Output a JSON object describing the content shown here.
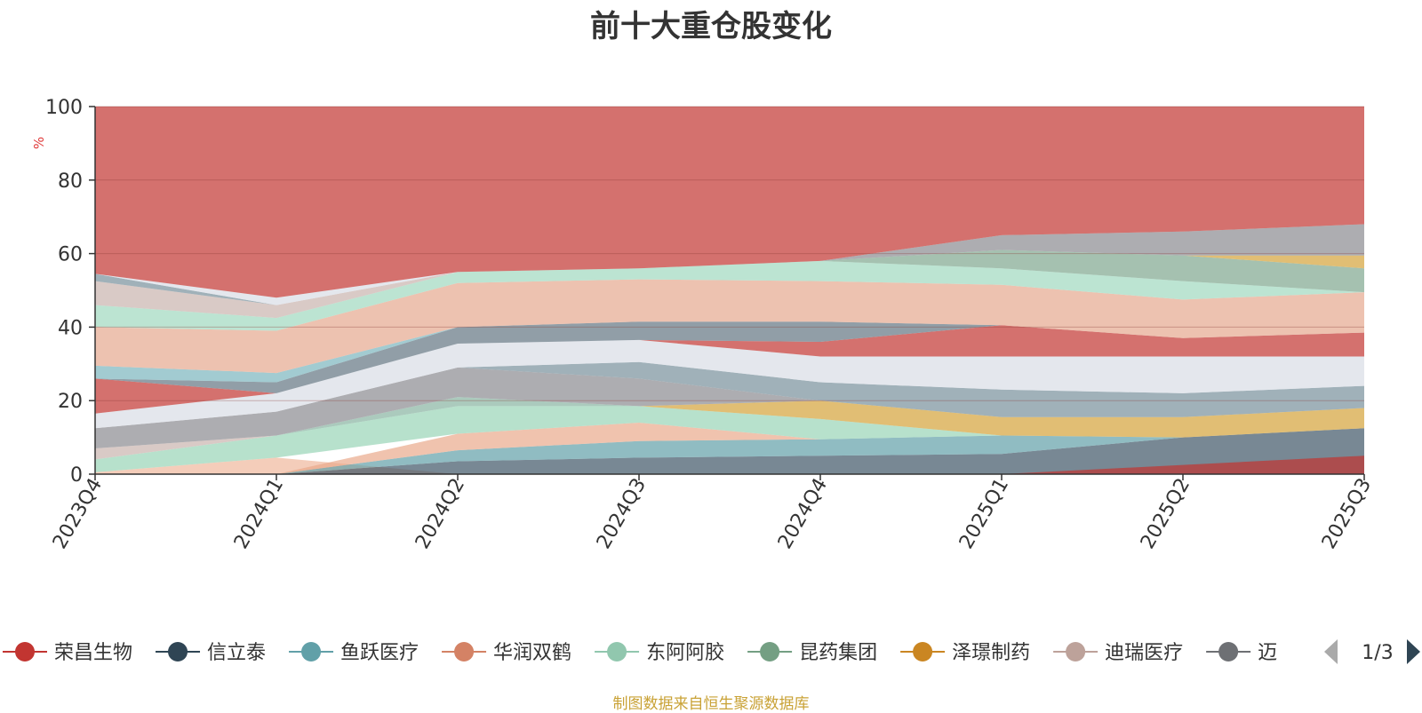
{
  "title": "前十大重仓股变化",
  "source": "制图数据来自恒生聚源数据库",
  "legend_page": "1/3",
  "chart_data": {
    "type": "area",
    "stacked": true,
    "x": [
      "2023Q4",
      "2024Q1",
      "2024Q2",
      "2024Q3",
      "2024Q4",
      "2025Q1",
      "2025Q2",
      "2025Q3"
    ],
    "ylabel": "%",
    "ylim": [
      0,
      100
    ],
    "yticks": [
      0,
      20,
      40,
      60,
      80,
      100
    ],
    "grid": true,
    "legend_position": "bottom",
    "bands": [
      {
        "color": "#f0b89c",
        "lower": [
          0,
          0,
          0,
          0,
          0,
          0,
          0,
          0
        ],
        "upper": [
          0.5,
          4.5,
          0,
          0,
          0,
          0,
          0,
          0
        ]
      },
      {
        "color": "#3f5566",
        "lower": [
          0,
          0,
          0,
          0,
          0,
          0,
          0,
          0
        ],
        "upper": [
          0,
          0,
          3.5,
          4.5,
          5,
          5.5,
          10,
          12.5
        ]
      },
      {
        "color": "#c23531",
        "lower": [
          0,
          0,
          0,
          0,
          0,
          0,
          0,
          0
        ],
        "upper": [
          0,
          0,
          0,
          0,
          0,
          0,
          2.5,
          5
        ]
      },
      {
        "color": "#61a0a8",
        "lower": [
          0,
          0,
          3.5,
          4.5,
          5,
          5.5,
          10,
          12.5
        ],
        "upper": [
          0,
          0,
          6.5,
          9,
          9.5,
          10.5,
          10,
          12.5
        ]
      },
      {
        "color": "#e9a98b",
        "lower": [
          0,
          0,
          6.5,
          9,
          9.5,
          10.5,
          10,
          12.5
        ],
        "upper": [
          0,
          0,
          11,
          14,
          9.5,
          10.5,
          10,
          12.5
        ]
      },
      {
        "color": "#98d4b6",
        "lower": [
          0.5,
          4.5,
          11,
          14,
          9.5,
          10.5,
          10,
          12.5
        ],
        "upper": [
          4,
          10.5,
          18.5,
          18.5,
          15,
          10.5,
          10,
          12.5
        ]
      },
      {
        "color": "#d4a339",
        "lower": [
          0,
          0,
          0,
          18.5,
          15,
          10.5,
          10,
          12.5
        ],
        "upper": [
          0,
          0,
          0,
          18.5,
          20,
          15.5,
          15.5,
          18
        ]
      },
      {
        "color": "#88b3a1",
        "lower": [
          4,
          10.5,
          18.5,
          18.5,
          20,
          15.5,
          15.5,
          18
        ],
        "upper": [
          4,
          10.5,
          21,
          18.5,
          20,
          15.5,
          15.5,
          18
        ]
      },
      {
        "color": "#c9b3ae",
        "lower": [
          4,
          10.5,
          21,
          18.5,
          20,
          15.5,
          15.5,
          18
        ],
        "upper": [
          7,
          10.5,
          21,
          18.5,
          20,
          15.5,
          15.5,
          18
        ]
      },
      {
        "color": "#8a8a90",
        "lower": [
          7,
          10.5,
          21,
          18.5,
          20,
          15.5,
          15.5,
          18
        ],
        "upper": [
          12.5,
          17,
          29,
          26,
          20,
          15.5,
          15.5,
          18
        ]
      },
      {
        "color": "#77909b",
        "lower": [
          12.5,
          17,
          29,
          26,
          20,
          15.5,
          15.5,
          18
        ],
        "upper": [
          12.5,
          17,
          29,
          30.5,
          25,
          23,
          22,
          24
        ]
      },
      {
        "color": "#d8dde5",
        "lower": [
          12.5,
          17,
          29,
          30.5,
          25,
          23,
          22,
          24
        ],
        "upper": [
          16.5,
          22,
          35.5,
          36.5,
          32,
          32,
          32,
          32
        ]
      },
      {
        "color": "#c23531",
        "lower": [
          16.5,
          22,
          35.5,
          36.5,
          32,
          32,
          32,
          32
        ],
        "upper": [
          26,
          22,
          35.5,
          36.5,
          36,
          40.5,
          37,
          38.5
        ]
      },
      {
        "color": "#637582",
        "lower": [
          26,
          22,
          35.5,
          36.5,
          36,
          40.5,
          37,
          38.5
        ],
        "upper": [
          26,
          25,
          40,
          41.5,
          41.5,
          40.5,
          37,
          38.5
        ]
      },
      {
        "color": "#7ab5bd",
        "lower": [
          26,
          25,
          40,
          41.5,
          41.5,
          40.5,
          37,
          38.5
        ],
        "upper": [
          29.5,
          27.5,
          40,
          41.5,
          41.5,
          40.5,
          37,
          38.5
        ]
      },
      {
        "color": "#e6a88e",
        "lower": [
          29.5,
          27.5,
          40,
          41.5,
          41.5,
          40.5,
          37,
          38.5
        ],
        "upper": [
          40,
          39,
          52,
          53,
          52.5,
          51.5,
          47.5,
          49.5
        ]
      },
      {
        "color": "#9fd8bf",
        "lower": [
          40,
          39,
          52,
          53,
          52.5,
          51.5,
          47.5,
          49.5
        ],
        "upper": [
          46,
          42.5,
          55,
          56,
          58,
          56,
          52.5,
          49.5
        ]
      },
      {
        "color": "#7fa78f",
        "lower": [
          46,
          42.5,
          55,
          56,
          58,
          56,
          52.5,
          49.5
        ],
        "upper": [
          46,
          42.5,
          55,
          56,
          58,
          61,
          59.5,
          56
        ]
      },
      {
        "color": "#d4a339",
        "lower": [
          46,
          42.5,
          55,
          56,
          58,
          61,
          59.5,
          56
        ],
        "upper": [
          46,
          42.5,
          55,
          56,
          58,
          61,
          59.5,
          59.5
        ]
      },
      {
        "color": "#c9b3ae",
        "lower": [
          46,
          42.5,
          55,
          56,
          58,
          61,
          59.5,
          59.5
        ],
        "upper": [
          52.5,
          46,
          55,
          56,
          58,
          61,
          59.5,
          59.5
        ]
      },
      {
        "color": "#77909b",
        "lower": [
          52.5,
          46,
          55,
          56,
          58,
          61,
          59.5,
          59.5
        ],
        "upper": [
          54.5,
          46,
          55,
          56,
          58,
          61,
          59.5,
          59.5
        ]
      },
      {
        "color": "#d8dde5",
        "lower": [
          54.5,
          46,
          55,
          56,
          58,
          61,
          59.5,
          59.5
        ],
        "upper": [
          54.5,
          48,
          55,
          56,
          58,
          61,
          59.5,
          59.5
        ]
      },
      {
        "color": "#8a8a90",
        "lower": [
          54.5,
          48,
          55,
          56,
          58,
          61,
          59.5,
          59.5
        ],
        "upper": [
          54.5,
          48,
          55,
          56,
          58,
          65,
          66,
          68
        ]
      },
      {
        "color": "#c23531",
        "lower": [
          54.5,
          48,
          55,
          56,
          58,
          65,
          66,
          68
        ],
        "upper": [
          100,
          100,
          100,
          100,
          100,
          100,
          100,
          100
        ]
      }
    ],
    "legend": [
      {
        "name": "荣昌生物",
        "color": "#c23531"
      },
      {
        "name": "信立泰",
        "color": "#2f4554"
      },
      {
        "name": "鱼跃医疗",
        "color": "#61a0a8"
      },
      {
        "name": "华润双鹤",
        "color": "#d48265"
      },
      {
        "name": "东阿阿胶",
        "color": "#91c7ae"
      },
      {
        "name": "昆药集团",
        "color": "#749f83"
      },
      {
        "name": "泽璟制药",
        "color": "#ca8622"
      },
      {
        "name": "迪瑞医疗",
        "color": "#bda29a"
      },
      {
        "name": "迈",
        "color": "#6e7074"
      }
    ]
  }
}
